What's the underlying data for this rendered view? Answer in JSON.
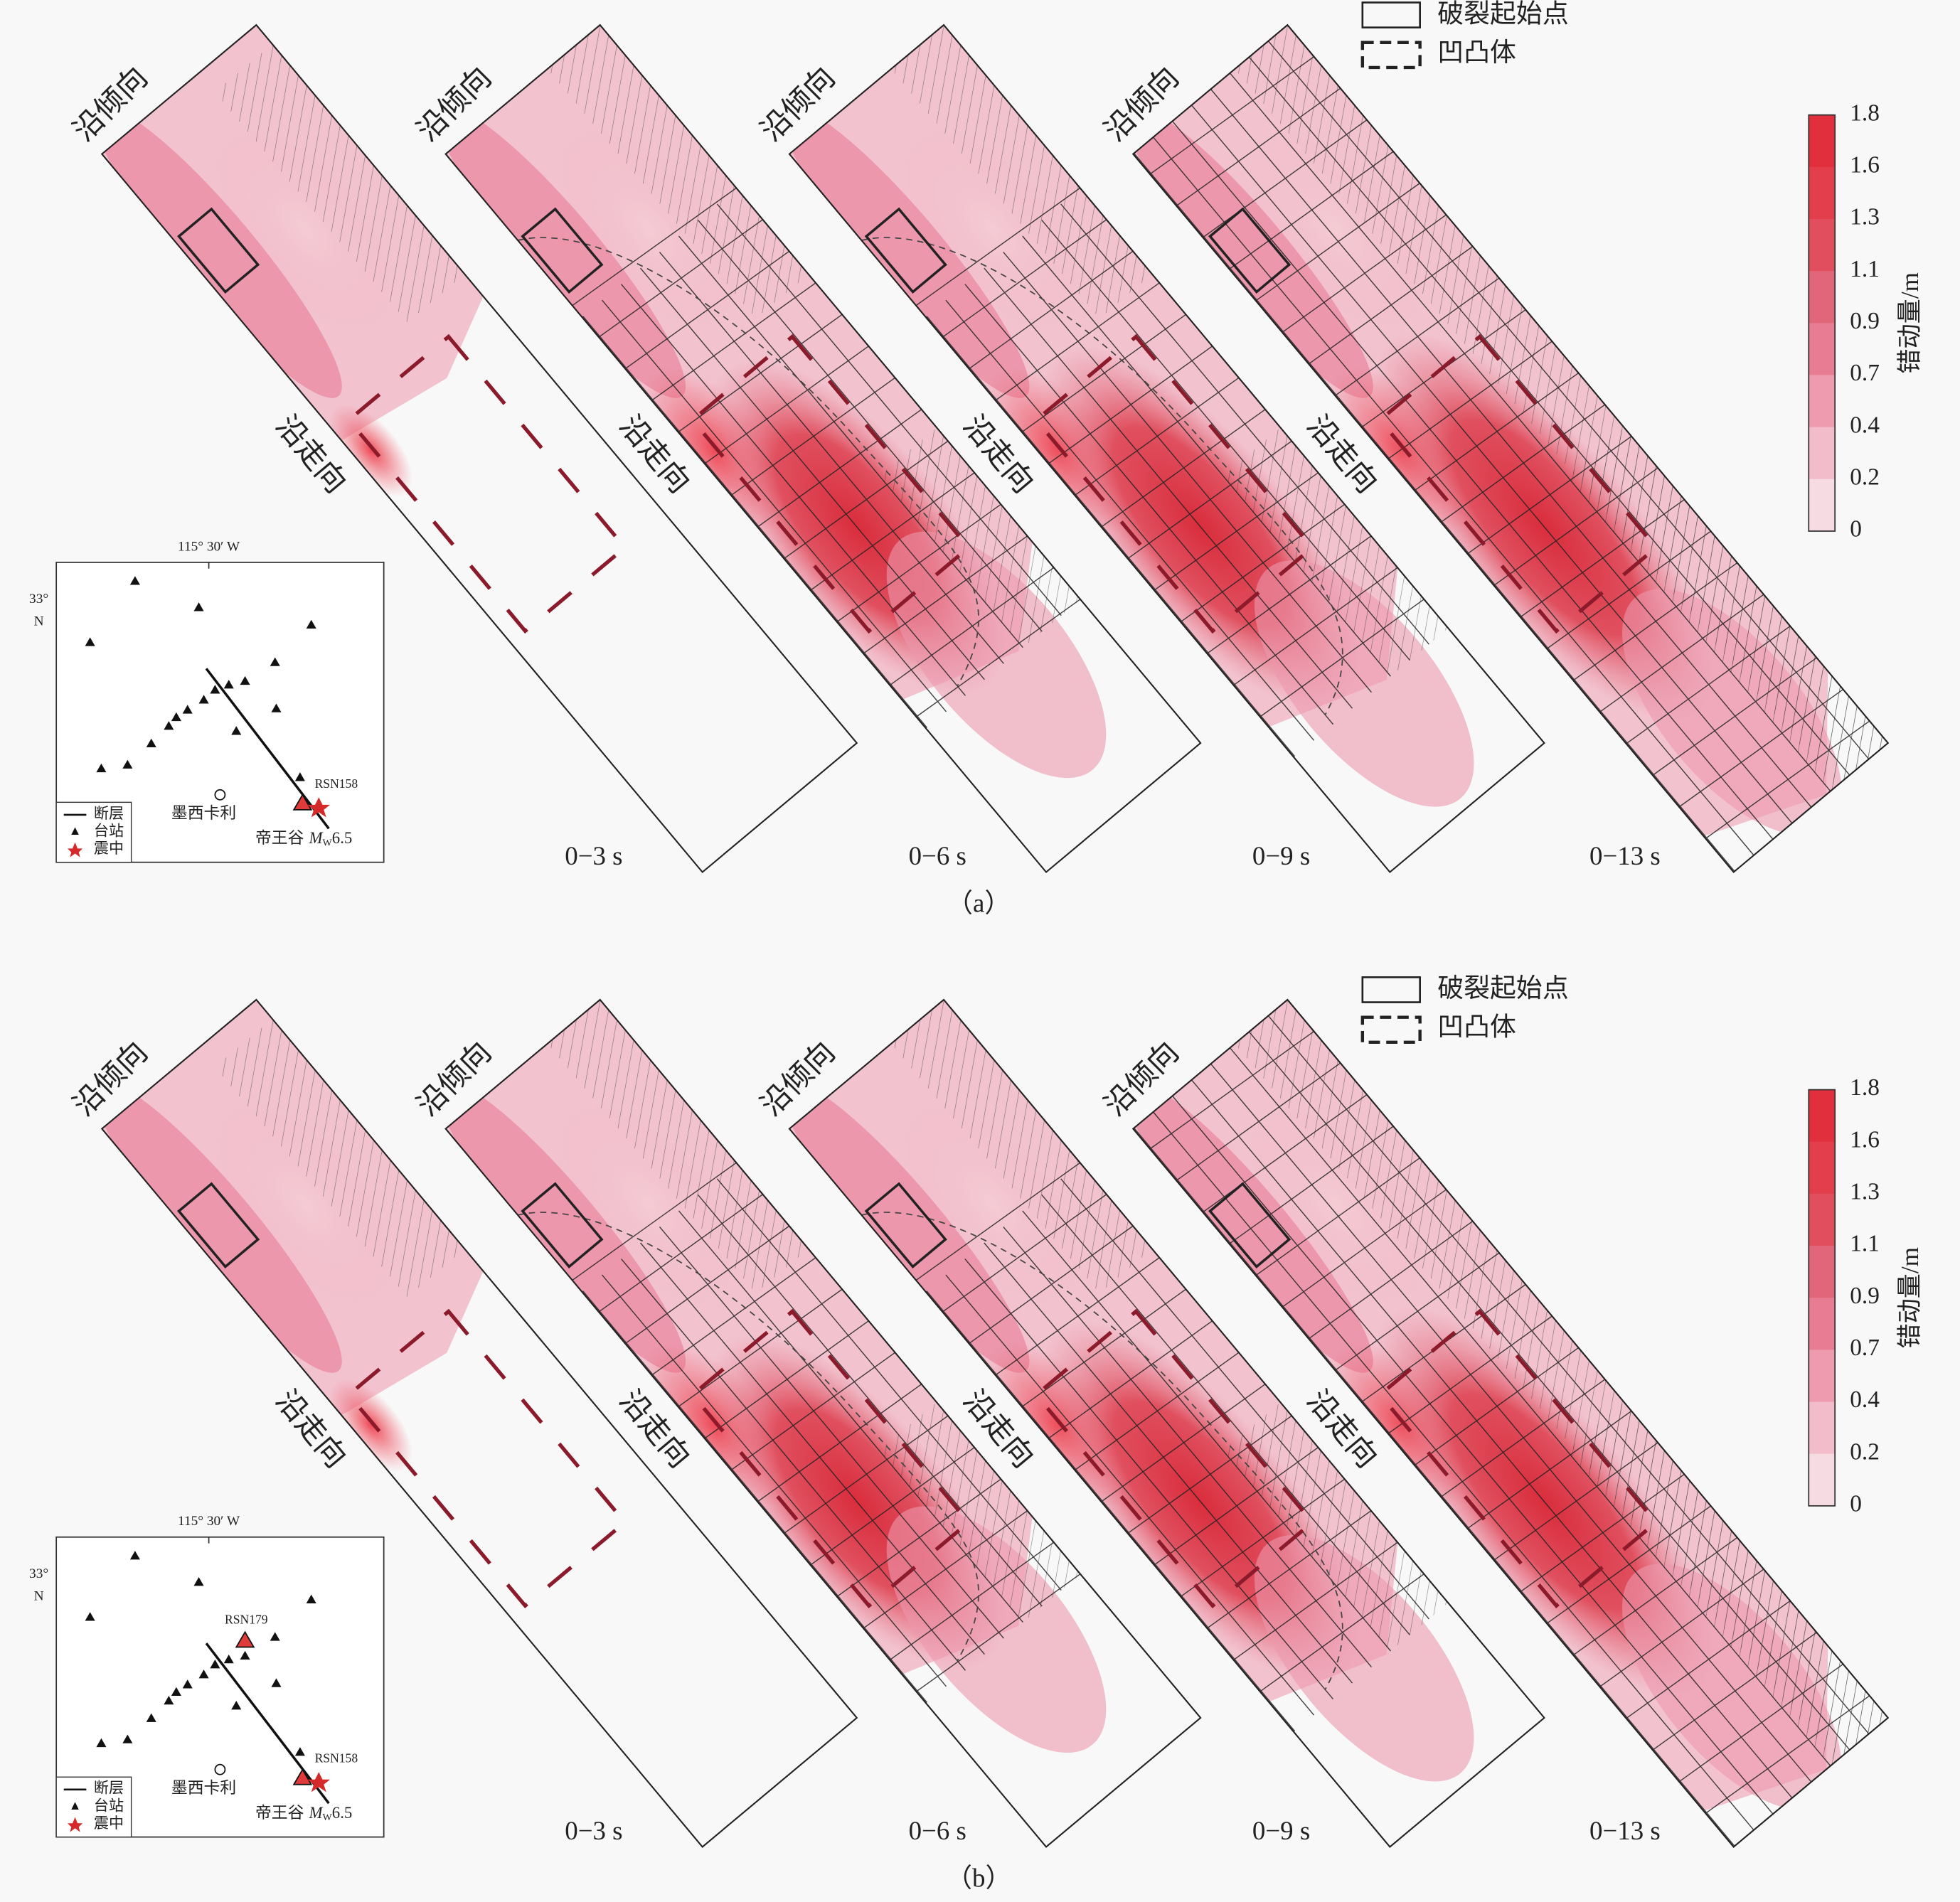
{
  "rows": [
    {
      "caption": "（a）",
      "times": [
        "0−3 s",
        "0−6 s",
        "0−9 s",
        "0−13 s"
      ],
      "dip": "沿倾向",
      "strike": "沿走向",
      "legend": {
        "initiation": "破裂起始点",
        "asperity": "凹凸体"
      },
      "colorbar": {
        "label": "错动量/m",
        "ticks": [
          "1.8",
          "1.6",
          "1.3",
          "1.1",
          "0.9",
          "0.7",
          "0.4",
          "0.2",
          "0"
        ]
      },
      "map": {
        "lon": "115° 30′ W",
        "lat": "33°",
        "lat_dir": "N",
        "legend": [
          "断层",
          "台站",
          "震中"
        ],
        "city": "墨西卡利",
        "stations": [
          "RSN158"
        ],
        "event": "帝王谷",
        "mag_symbol": "M",
        "mag_sub": "W",
        "mag": "6.5"
      }
    },
    {
      "caption": "（b）",
      "times": [
        "0−3 s",
        "0−6 s",
        "0−9 s",
        "0−13 s"
      ],
      "dip": "沿倾向",
      "strike": "沿走向",
      "legend": {
        "initiation": "破裂起始点",
        "asperity": "凹凸体"
      },
      "colorbar": {
        "label": "错动量/m",
        "ticks": [
          "1.8",
          "1.6",
          "1.3",
          "1.1",
          "0.9",
          "0.7",
          "0.4",
          "0.2",
          "0"
        ]
      },
      "map": {
        "lon": "115° 30′ W",
        "lat": "33°",
        "lat_dir": "N",
        "legend": [
          "断层",
          "台站",
          "震中"
        ],
        "city": "墨西卡利",
        "stations": [
          "RSN158",
          "RSN179"
        ],
        "event": "帝王谷",
        "mag_symbol": "M",
        "mag_sub": "W",
        "mag": "6.5"
      }
    }
  ]
}
